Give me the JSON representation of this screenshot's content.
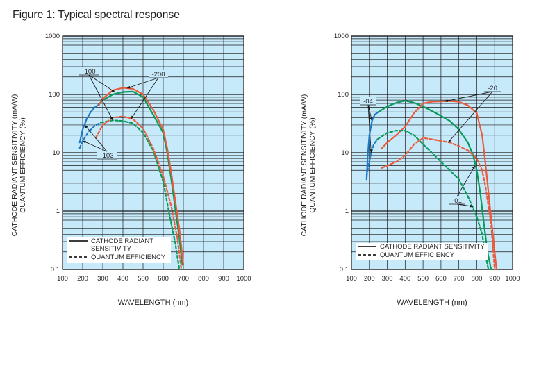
{
  "figure_title": "Figure 1: Typical spectral response",
  "colors": {
    "plot_bg": "#c7eafb",
    "grid": "#1a1a1a",
    "blue": "#1f7ac6",
    "green": "#0a9a5a",
    "orange": "#ec5a3c"
  },
  "chart_data": [
    {
      "type": "line",
      "xscale": "linear",
      "yscale": "log",
      "xlim": [
        100,
        1000
      ],
      "ylim": [
        0.1,
        1000
      ],
      "xticks": [
        "100",
        "200",
        "300",
        "400",
        "500",
        "600",
        "700",
        "800",
        "900",
        "1000"
      ],
      "yticks": [
        "0.1",
        "1",
        "10",
        "100",
        "1000"
      ],
      "xlabel": "WAVELENGTH (nm)",
      "ylabel_lines": [
        "CATHODE RADIANT SENSITIVITY (mA/W)",
        "QUANTUM EFFICIENCY (%)"
      ],
      "legend": {
        "position": "bottom-left",
        "items": [
          {
            "style": "solid",
            "lines": [
              "CATHODE RADIANT",
              "SENSITIVITY"
            ]
          },
          {
            "style": "dashed",
            "lines": [
              "QUANTUM EFFICIENCY"
            ]
          }
        ]
      },
      "labels": [
        "-100",
        "-200",
        "-103"
      ],
      "series": [
        {
          "label_ref": "-103",
          "kind": "sensitivity",
          "color": "blue",
          "x": [
            185,
            200,
            220,
            240,
            260,
            280
          ],
          "y": [
            15,
            25,
            38,
            50,
            60,
            67
          ]
        },
        {
          "label_ref": "-100",
          "kind": "sensitivity",
          "color": "green",
          "x": [
            280,
            300,
            350,
            400,
            450,
            500,
            550,
            600,
            620,
            640,
            660,
            680,
            695
          ],
          "y": [
            67,
            80,
            100,
            110,
            112,
            90,
            45,
            22,
            10,
            3.5,
            1.1,
            0.35,
            0.12
          ]
        },
        {
          "label_ref": "-200",
          "kind": "sensitivity",
          "color": "orange",
          "x": [
            280,
            300,
            350,
            400,
            450,
            500,
            550,
            600,
            620,
            640,
            660,
            680,
            700
          ],
          "y": [
            65,
            85,
            118,
            130,
            125,
            100,
            55,
            25,
            12,
            4.5,
            1.5,
            0.5,
            0.12
          ]
        },
        {
          "label_ref": "-103",
          "kind": "qe",
          "color": "blue",
          "x": [
            185,
            200,
            230,
            260,
            290
          ],
          "y": [
            12,
            16,
            23,
            29,
            33
          ]
        },
        {
          "label_ref": "-100",
          "kind": "qe",
          "color": "green",
          "x": [
            290,
            350,
            400,
            450,
            500,
            550,
            600,
            630,
            660,
            680
          ],
          "y": [
            33,
            36,
            35,
            32,
            22,
            11,
            3.2,
            0.9,
            0.28,
            0.1
          ]
        },
        {
          "label_ref": "-200",
          "kind": "qe",
          "color": "orange",
          "x": [
            265,
            300,
            350,
            400,
            450,
            500,
            550,
            600,
            640,
            670,
            690
          ],
          "y": [
            18,
            30,
            40,
            42,
            38,
            26,
            12,
            4,
            1.2,
            0.35,
            0.1
          ]
        }
      ]
    },
    {
      "type": "line",
      "xscale": "linear",
      "yscale": "log",
      "xlim": [
        100,
        1000
      ],
      "ylim": [
        0.1,
        1000
      ],
      "xticks": [
        "100",
        "200",
        "300",
        "400",
        "500",
        "600",
        "700",
        "800",
        "900",
        "1000"
      ],
      "yticks": [
        "0.1",
        "1",
        "10",
        "100",
        "1000"
      ],
      "xlabel": "WAVELENGTH (nm)",
      "ylabel_lines": [
        "CATHODE RADIANT SENSITIVITY (mA/W)",
        "QUANTUM EFFICIENCY (%)"
      ],
      "legend": {
        "position": "bottom-left",
        "items": [
          {
            "style": "solid",
            "lines": [
              "CATHODE RADIANT SENSITIVITY"
            ]
          },
          {
            "style": "dashed",
            "lines": [
              "QUANTUM EFFICIENCY"
            ]
          }
        ]
      },
      "labels": [
        "-04",
        "-20",
        "-01"
      ],
      "series": [
        {
          "label_ref": "-04",
          "kind": "sensitivity",
          "color": "blue",
          "x": [
            185,
            190,
            200,
            215,
            230,
            250
          ],
          "y": [
            3.5,
            8,
            20,
            35,
            45,
            50
          ]
        },
        {
          "label_ref": "-01",
          "kind": "sensitivity",
          "color": "green",
          "x": [
            250,
            300,
            350,
            400,
            450,
            500,
            550,
            600,
            650,
            700,
            750,
            780,
            800,
            820,
            840,
            860,
            880
          ],
          "y": [
            50,
            62,
            72,
            78,
            72,
            62,
            52,
            43,
            35,
            25,
            15,
            9,
            5,
            2,
            0.6,
            0.2,
            0.1
          ]
        },
        {
          "label_ref": "-20",
          "kind": "sensitivity",
          "color": "orange",
          "x": [
            270,
            300,
            350,
            400,
            450,
            500,
            550,
            600,
            650,
            700,
            750,
            800,
            830,
            850,
            870,
            890,
            910
          ],
          "y": [
            12,
            15,
            20,
            28,
            48,
            70,
            75,
            76,
            77,
            75,
            65,
            48,
            20,
            6,
            1.5,
            0.4,
            0.1
          ]
        },
        {
          "label_ref": "-04",
          "kind": "qe",
          "color": "blue",
          "x": [
            185,
            195,
            210,
            225,
            245
          ],
          "y": [
            4,
            6,
            10,
            14,
            17
          ]
        },
        {
          "label_ref": "-01",
          "kind": "qe",
          "color": "green",
          "x": [
            245,
            300,
            350,
            400,
            450,
            500,
            550,
            600,
            650,
            700,
            750,
            800,
            830,
            850,
            865
          ],
          "y": [
            17,
            22,
            24,
            24,
            20,
            14,
            10,
            7,
            5,
            3.5,
            1.8,
            0.8,
            0.4,
            0.17,
            0.1
          ]
        },
        {
          "label_ref": "-20",
          "kind": "qe",
          "color": "orange",
          "x": [
            270,
            300,
            350,
            400,
            450,
            500,
            550,
            600,
            650,
            700,
            750,
            800,
            830,
            850,
            880,
            900
          ],
          "y": [
            5.5,
            6,
            7,
            9,
            14,
            18,
            17,
            16,
            15,
            13,
            11,
            8,
            5,
            2.5,
            0.6,
            0.1
          ]
        }
      ]
    }
  ]
}
